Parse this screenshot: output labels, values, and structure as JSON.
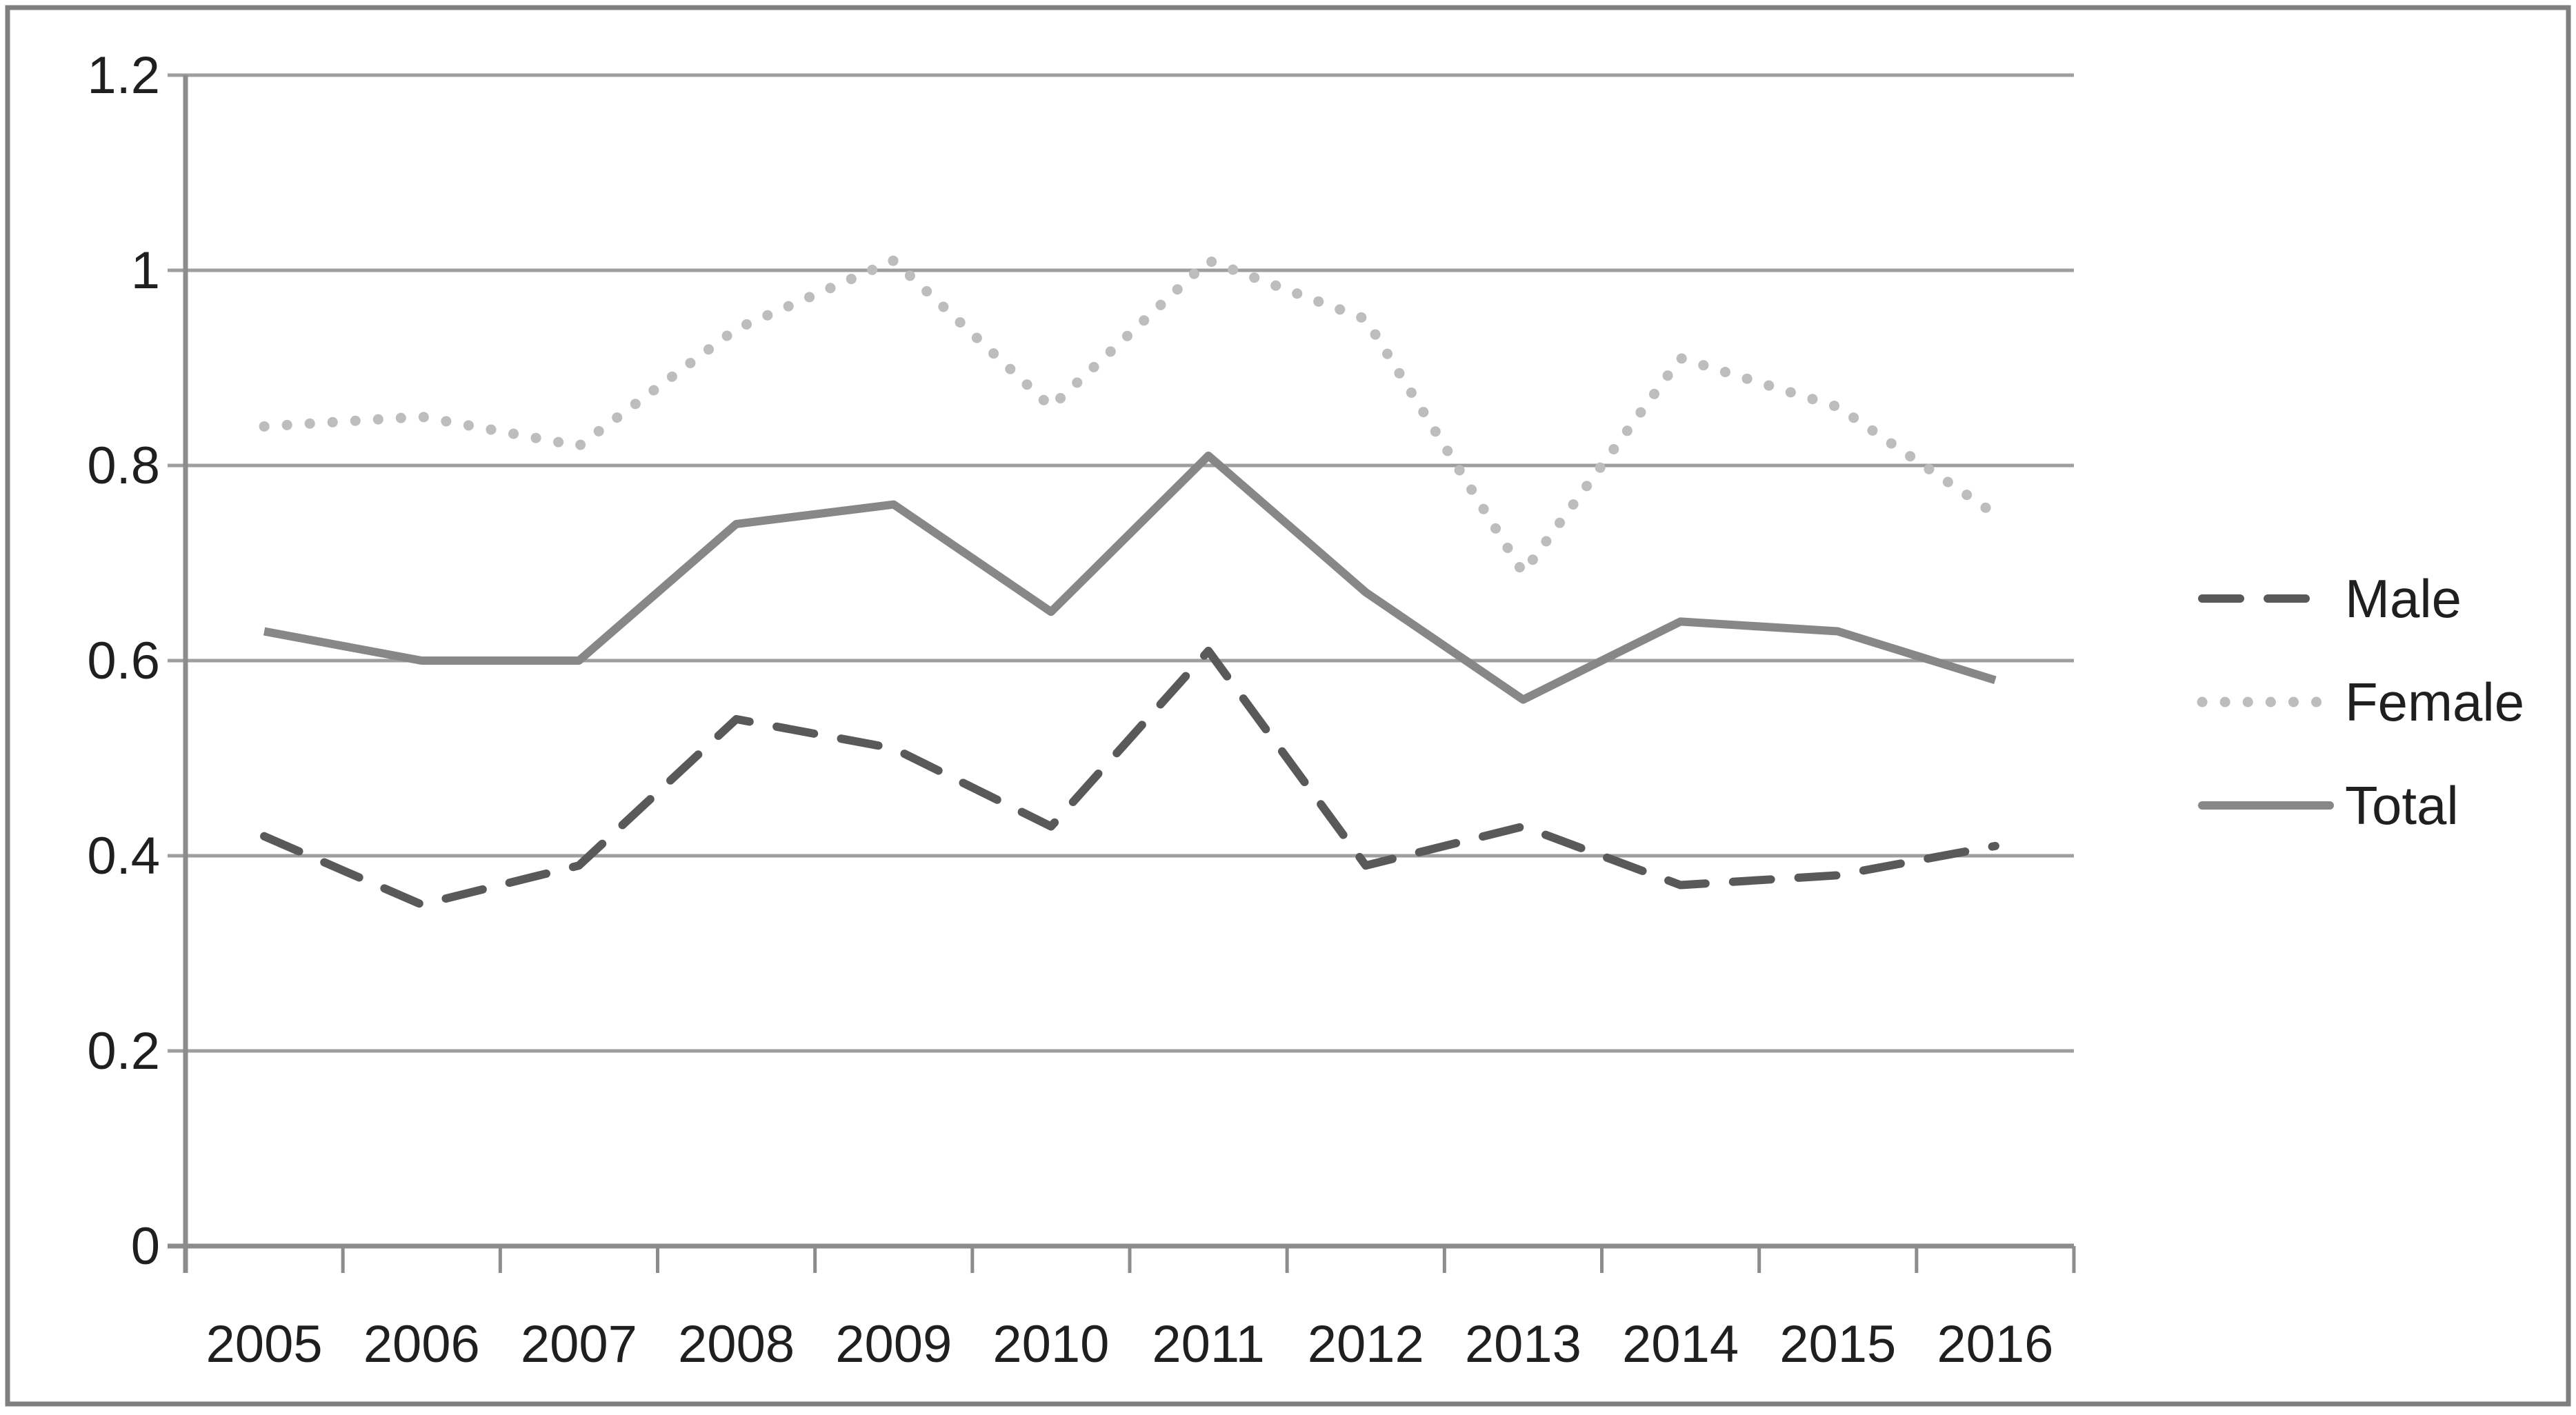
{
  "chart_data": {
    "type": "line",
    "title": "",
    "xlabel": "",
    "ylabel": "",
    "categories": [
      "2005",
      "2006",
      "2007",
      "2008",
      "2009",
      "2010",
      "2011",
      "2012",
      "2013",
      "2014",
      "2015",
      "2016"
    ],
    "series": [
      {
        "name": "Male",
        "style": "dashed",
        "color": "#595959",
        "values": [
          0.42,
          0.35,
          0.39,
          0.54,
          0.51,
          0.43,
          0.61,
          0.39,
          0.43,
          0.37,
          0.38,
          0.41
        ]
      },
      {
        "name": "Female",
        "style": "dotted",
        "color": "#bdbdbd",
        "values": [
          0.84,
          0.85,
          0.82,
          0.94,
          1.01,
          0.86,
          1.01,
          0.95,
          0.69,
          0.91,
          0.86,
          0.75
        ]
      },
      {
        "name": "Total",
        "style": "solid",
        "color": "#878787",
        "values": [
          0.63,
          0.6,
          0.6,
          0.74,
          0.76,
          0.65,
          0.81,
          0.67,
          0.56,
          0.64,
          0.63,
          0.58
        ]
      }
    ],
    "ylim": [
      0,
      1.2
    ],
    "yticks": [
      {
        "value": 1.2,
        "label": "1.2"
      },
      {
        "value": 1.0,
        "label": "1"
      },
      {
        "value": 0.8,
        "label": "0.8"
      },
      {
        "value": 0.6,
        "label": "0.6"
      },
      {
        "value": 0.4,
        "label": "0.4"
      },
      {
        "value": 0.2,
        "label": "0.2"
      },
      {
        "value": 0.0,
        "label": "0"
      }
    ],
    "grid": true,
    "legend_position": "right"
  },
  "colors": {
    "background": "#ffffff",
    "border": "#7f7f7f",
    "gridline": "#9e9e9e",
    "axis": "#8c8c8c",
    "tick": "#8c8c8c",
    "label": "#1f1f1f"
  }
}
